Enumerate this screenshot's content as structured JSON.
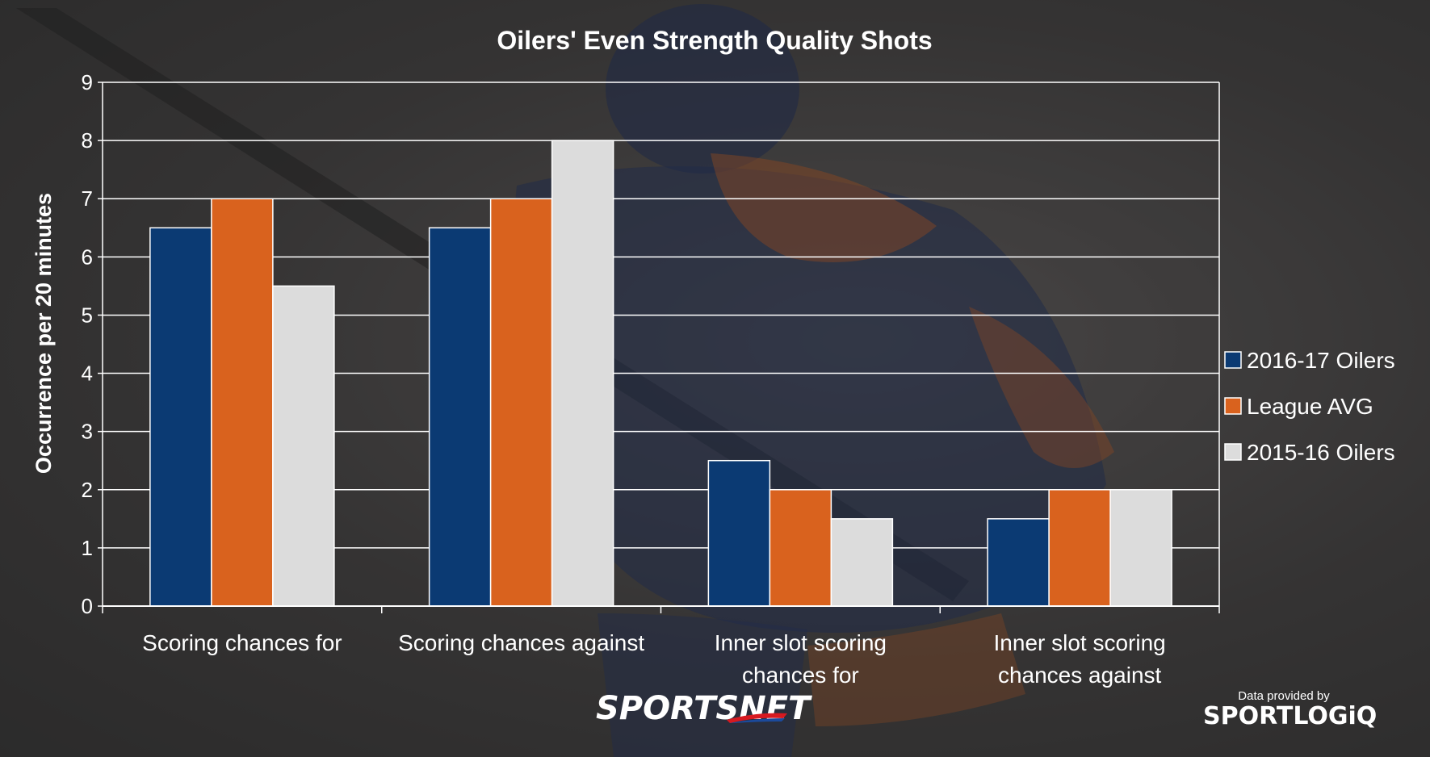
{
  "chart_data": {
    "type": "bar",
    "title": "Oilers' Even Strength Quality Shots",
    "ylabel": "Occurrence per 20 minutes",
    "xlabel": "",
    "ylim": [
      0,
      9
    ],
    "yticks": [
      "0",
      "1",
      "2",
      "3",
      "4",
      "5",
      "6",
      "7",
      "8",
      "9"
    ],
    "categories": [
      [
        "Scoring chances for"
      ],
      [
        "Scoring chances against"
      ],
      [
        "Inner slot scoring",
        "chances for"
      ],
      [
        "Inner slot scoring",
        "chances against"
      ]
    ],
    "series": [
      {
        "name": "2016-17 Oilers",
        "color": "#0b3a73",
        "values": [
          6.5,
          6.5,
          2.5,
          1.5
        ]
      },
      {
        "name": "League AVG",
        "color": "#d9621e",
        "values": [
          7,
          7,
          2,
          2
        ]
      },
      {
        "name": "2015-16 Oilers",
        "color": "#dcdcdc",
        "values": [
          5.5,
          8,
          1.5,
          2
        ]
      }
    ],
    "grid": true,
    "legend_position": "right"
  },
  "branding": {
    "network": "SPORTSNET",
    "provided_by": "Data provided by",
    "provider": "SPORTLOGiQ"
  }
}
